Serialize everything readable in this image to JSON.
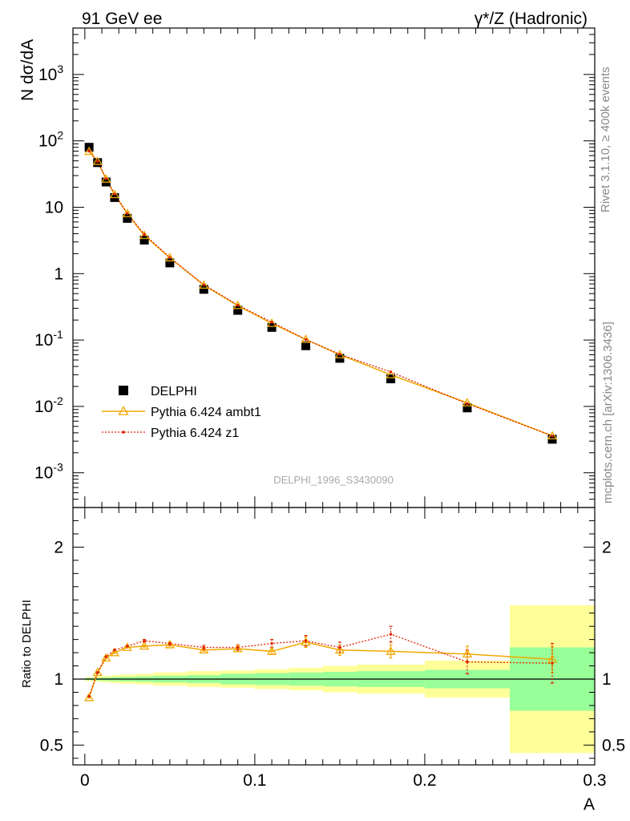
{
  "header": {
    "left_title": "91 GeV ee",
    "right_title": "γ*/Z (Hadronic)"
  },
  "side_labels": {
    "rivet": "Rivet 3.1.10, ≥ 400k events",
    "mcplots": "mcplots.cern.ch [arXiv:1306.3436]"
  },
  "watermark": "DELPHI_1996_S3430090",
  "legend": {
    "items": [
      "DELPHI",
      "Pythia 6.424 ambt1",
      "Pythia 6.424 z1"
    ]
  },
  "colors": {
    "data": "#000000",
    "ambt1": "#f0a800",
    "z1": "#e02000",
    "band_inner": "#99ff99",
    "band_outer": "#ffff99"
  },
  "chart_data": [
    {
      "type": "scatter",
      "panel": "main",
      "ylabel": "N dσ/dA",
      "yscale": "log",
      "ylim": [
        0.0003,
        5000
      ],
      "xlim": [
        -0.007,
        0.3
      ],
      "yticks": [
        {
          "value": 0.001,
          "base": "10",
          "exp": "-3"
        },
        {
          "value": 0.01,
          "base": "10",
          "exp": "-2"
        },
        {
          "value": 0.1,
          "base": "10",
          "exp": "-1"
        },
        {
          "value": 1,
          "base": "1",
          "exp": ""
        },
        {
          "value": 10,
          "base": "10",
          "exp": ""
        },
        {
          "value": 100,
          "base": "10",
          "exp": "2"
        },
        {
          "value": 1000,
          "base": "10",
          "exp": "3"
        }
      ],
      "x": [
        0.0025,
        0.0075,
        0.0125,
        0.0175,
        0.025,
        0.035,
        0.05,
        0.07,
        0.09,
        0.11,
        0.13,
        0.15,
        0.18,
        0.225,
        0.275
      ],
      "series": [
        {
          "name": "DELPHI",
          "values": [
            80,
            47,
            24,
            14,
            6.8,
            3.2,
            1.45,
            0.58,
            0.28,
            0.155,
            0.082,
            0.053,
            0.026,
            0.0095,
            0.0032
          ]
        },
        {
          "name": "Pythia 6.424 ambt1",
          "values": [
            69,
            49,
            26.5,
            15.5,
            8.0,
            3.75,
            1.73,
            0.67,
            0.33,
            0.178,
            0.102,
            0.06,
            0.03,
            0.0113,
            0.0036
          ]
        },
        {
          "name": "Pythia 6.424 z1",
          "values": [
            70,
            49,
            27,
            15.8,
            8.1,
            3.9,
            1.75,
            0.68,
            0.335,
            0.186,
            0.102,
            0.061,
            0.033,
            0.011,
            0.0036
          ]
        }
      ]
    },
    {
      "type": "line",
      "panel": "ratio",
      "xlabel": "A",
      "ylabel": "Ratio to DELPHI",
      "ylim": [
        0.35,
        2.3
      ],
      "yticks": [
        0.5,
        1,
        2
      ],
      "xticks": [
        0,
        0.1,
        0.2,
        0.3
      ],
      "xtick_labels": [
        "0",
        "0.1",
        "0.2",
        "0.3"
      ],
      "x": [
        0.0025,
        0.0075,
        0.0125,
        0.0175,
        0.025,
        0.035,
        0.05,
        0.07,
        0.09,
        0.11,
        0.13,
        0.15,
        0.18,
        0.225,
        0.275
      ],
      "series": [
        {
          "name": "Pythia 6.424 ambt1",
          "values": [
            0.86,
            1.05,
            1.16,
            1.2,
            1.24,
            1.25,
            1.26,
            1.22,
            1.23,
            1.21,
            1.28,
            1.22,
            1.21,
            1.19,
            1.15
          ],
          "errors": [
            0.005,
            0.005,
            0.005,
            0.005,
            0.005,
            0.008,
            0.01,
            0.01,
            0.02,
            0.02,
            0.04,
            0.04,
            0.05,
            0.06,
            0.1
          ]
        },
        {
          "name": "Pythia 6.424 z1",
          "values": [
            0.87,
            1.05,
            1.17,
            1.22,
            1.25,
            1.29,
            1.27,
            1.24,
            1.24,
            1.27,
            1.29,
            1.24,
            1.34,
            1.13,
            1.12
          ],
          "errors": [
            0.005,
            0.005,
            0.005,
            0.005,
            0.005,
            0.01,
            0.01,
            0.015,
            0.02,
            0.03,
            0.04,
            0.04,
            0.06,
            0.09,
            0.15
          ]
        }
      ],
      "bands": {
        "edges": [
          0,
          0.005,
          0.01,
          0.015,
          0.02,
          0.03,
          0.04,
          0.06,
          0.08,
          0.1,
          0.12,
          0.14,
          0.16,
          0.2,
          0.25,
          0.3
        ],
        "inner": [
          0.008,
          0.01,
          0.012,
          0.015,
          0.017,
          0.02,
          0.025,
          0.03,
          0.04,
          0.045,
          0.05,
          0.055,
          0.06,
          0.07,
          0.24
        ],
        "outer": [
          0.015,
          0.02,
          0.025,
          0.03,
          0.035,
          0.04,
          0.05,
          0.06,
          0.065,
          0.075,
          0.085,
          0.1,
          0.11,
          0.14,
          0.56
        ]
      }
    }
  ]
}
